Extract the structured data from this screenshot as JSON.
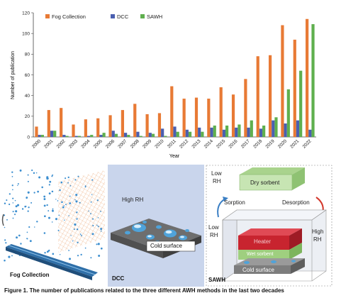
{
  "chart_data": {
    "type": "bar",
    "title": "",
    "xlabel": "Year",
    "ylabel": "Number of publication",
    "ylim": [
      0,
      120
    ],
    "yticks": [
      0,
      20,
      40,
      60,
      80,
      100,
      120
    ],
    "grid": false,
    "legend_position": "top-left",
    "categories": [
      "2000",
      "2001",
      "2002",
      "2003",
      "2004",
      "2005",
      "2006",
      "2007",
      "2008",
      "2009",
      "2010",
      "2011",
      "2012",
      "2013",
      "2014",
      "2015",
      "2016",
      "2017",
      "2018",
      "2019",
      "2020",
      "2021",
      "2022"
    ],
    "series": [
      {
        "name": "Fog Collection",
        "color": "#E87A35",
        "values": [
          10,
          26,
          28,
          12,
          17,
          18,
          21,
          26,
          32,
          22,
          23,
          49,
          37,
          38,
          37,
          48,
          41,
          56,
          78,
          79,
          108,
          94,
          114
        ]
      },
      {
        "name": "DCC",
        "color": "#4A5FB0",
        "values": [
          2,
          6,
          2,
          1,
          1,
          2,
          6,
          4,
          5,
          4,
          8,
          10,
          7,
          9,
          9,
          7,
          9,
          9,
          8,
          16,
          13,
          16,
          7
        ]
      },
      {
        "name": "SAWH",
        "color": "#5FAF4E",
        "values": [
          2,
          6,
          1,
          1,
          2,
          4,
          3,
          2,
          1,
          3,
          1,
          5,
          5,
          5,
          11,
          11,
          12,
          16,
          11,
          19,
          46,
          64,
          109
        ]
      }
    ]
  },
  "panels": {
    "fog": {
      "label": "Fog Collection"
    },
    "dcc": {
      "label": "DCC",
      "high_rh": "High RH",
      "cold_surface": "Cold surface"
    },
    "sawh": {
      "label": "SAWH",
      "low_rh_top_1": "Low",
      "low_rh_top_2": "RH",
      "dry_sorbent": "Dry sorbent",
      "sorption": "Sorption",
      "desorption": "Desorption",
      "low_rh_left_1": "Low",
      "low_rh_left_2": "RH",
      "high_rh_1": "High",
      "high_rh_2": "RH",
      "heater": "Heater",
      "wet_sorbent": "Wet sorbent",
      "cold_surface": "Cold surface"
    }
  },
  "caption": "Figure 1. The number of publications related to the three different AWH methods in the last two decades"
}
